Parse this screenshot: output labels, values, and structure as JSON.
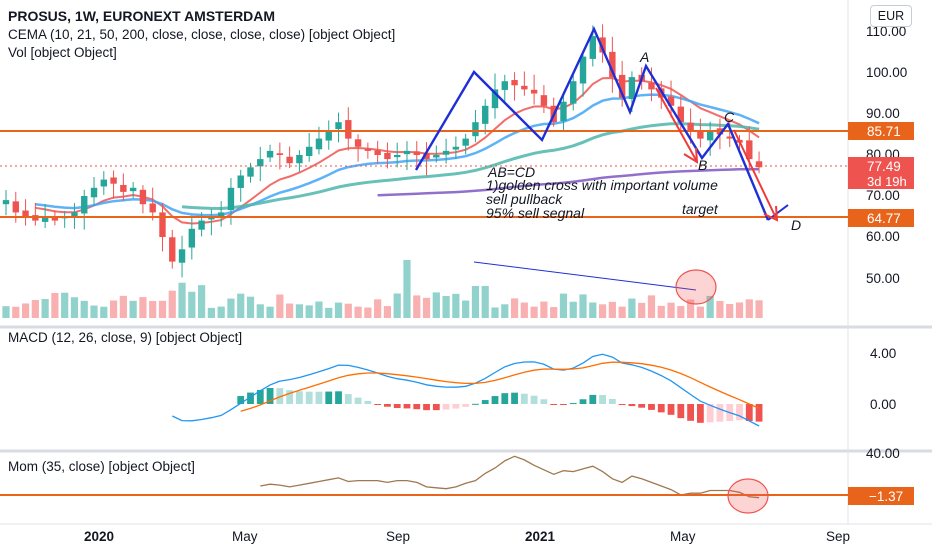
{
  "header": {
    "title": "PROSUS, 1W, EURONEXT AMSTERDAM",
    "cema_legend": "CEMA (10, 21, 50, 200, close, close, close, close) [object Object]",
    "vol_legend": "Vol [object Object]",
    "currency": "EUR"
  },
  "main_axis": {
    "ticks": [
      "110.00",
      "100.00",
      "90.00",
      "80.00",
      "70.00",
      "60.00",
      "50.00"
    ],
    "badges": {
      "level_high": "85.71",
      "last_price": "77.49",
      "countdown": "3d 19h",
      "level_low": "64.77"
    }
  },
  "annotations": {
    "ab_cd": "AB=CD",
    "line1": "1)golden cross with important volume",
    "line2": "sell pullback",
    "line3": "95% sell segnal",
    "target": "target",
    "point_a": "A",
    "point_b": "B",
    "point_c": "C",
    "point_d": "D"
  },
  "macd": {
    "legend": "MACD (12, 26, close, 9) [object Object]",
    "ticks": [
      "4.00",
      "0.00"
    ]
  },
  "mom": {
    "legend": "Mom (35, close) [object Object]",
    "ticks": [
      "40.00"
    ],
    "badge": "−1.37"
  },
  "time_axis": {
    "labels": [
      "2020",
      "May",
      "Sep",
      "2021",
      "May",
      "Sep"
    ]
  },
  "colors": {
    "up": "#26a69a",
    "down": "#ef5350",
    "level": "#e8641b",
    "pattern": "#1f2fd6",
    "arrow": "#ef3b3b",
    "last_badge": "#ef5350"
  },
  "chart_data": {
    "type": "candlestick",
    "title": "PROSUS, 1W, EURONEXT AMSTERDAM",
    "levels": [
      85.71,
      64.77
    ],
    "last_close": 77.49,
    "y_range": [
      46,
      114
    ],
    "closes": [
      69,
      66,
      65,
      64,
      65,
      64,
      65,
      66,
      70,
      72,
      74,
      73,
      71,
      72,
      68,
      66,
      60,
      54,
      57,
      62,
      64,
      65,
      66,
      72,
      75,
      77,
      79,
      81,
      80,
      78,
      80,
      82,
      84,
      86,
      88,
      84,
      82,
      81,
      80,
      79,
      80,
      81,
      80,
      79,
      80,
      81,
      82,
      84,
      88,
      92,
      96,
      98,
      97,
      96,
      95,
      92,
      88,
      93,
      98,
      104,
      109,
      105,
      99,
      94,
      99,
      98,
      96,
      94,
      92,
      88,
      86,
      84,
      86,
      85,
      84,
      83,
      79,
      77
    ]
  }
}
